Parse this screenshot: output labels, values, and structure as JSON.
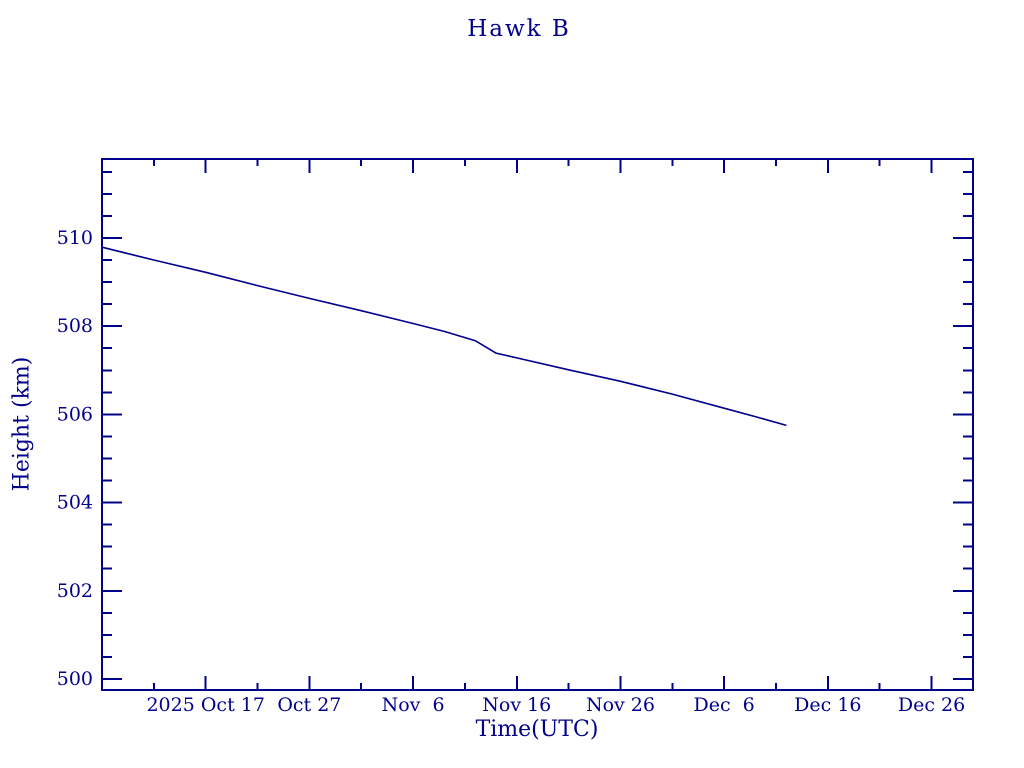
{
  "page": {
    "background": "#FFFFFF"
  },
  "chart_data": {
    "type": "line",
    "title": "Hawk B",
    "xlabel": "Time(UTC)",
    "ylabel": "Height (km)",
    "ink_color": "#00008B",
    "line_color": "#00008B",
    "background": "#FFFFFF",
    "grid": false,
    "legend": false,
    "x_axis": {
      "start_date": "2025 Oct 7",
      "range_days": [
        0,
        84
      ],
      "major_ticks": [
        {
          "day": 10,
          "label": "2025 Oct 17"
        },
        {
          "day": 20,
          "label": "Oct 27"
        },
        {
          "day": 30,
          "label": "Nov  6"
        },
        {
          "day": 40,
          "label": "Nov 16"
        },
        {
          "day": 50,
          "label": "Nov 26"
        },
        {
          "day": 60,
          "label": "Dec  6"
        },
        {
          "day": 70,
          "label": "Dec 16"
        },
        {
          "day": 80,
          "label": "Dec 26"
        }
      ],
      "minor_tick_days": [
        5,
        15,
        25,
        35,
        45,
        55,
        65,
        75
      ]
    },
    "y_axis": {
      "range": [
        499.75,
        511.79
      ],
      "major_ticks": [
        500,
        502,
        504,
        506,
        508,
        510
      ],
      "minor_step": 0.5
    },
    "series": [
      {
        "name": "Hawk B height",
        "points": [
          {
            "date": "Oct 7",
            "day": 0,
            "height_km": 509.79
          },
          {
            "date": "Oct 12",
            "day": 5,
            "height_km": 509.5
          },
          {
            "date": "Oct 17",
            "day": 10,
            "height_km": 509.22
          },
          {
            "date": "Oct 22",
            "day": 15,
            "height_km": 508.92
          },
          {
            "date": "Oct 27",
            "day": 20,
            "height_km": 508.63
          },
          {
            "date": "Nov 1",
            "day": 25,
            "height_km": 508.35
          },
          {
            "date": "Nov 6",
            "day": 30,
            "height_km": 508.06
          },
          {
            "date": "Nov 9",
            "day": 33,
            "height_km": 507.88
          },
          {
            "date": "Nov 12",
            "day": 36,
            "height_km": 507.67
          },
          {
            "date": "Nov 14",
            "day": 38,
            "height_km": 507.39
          },
          {
            "date": "Nov 16",
            "day": 40,
            "height_km": 507.28
          },
          {
            "date": "Nov 21",
            "day": 45,
            "height_km": 507.01
          },
          {
            "date": "Nov 26",
            "day": 50,
            "height_km": 506.75
          },
          {
            "date": "Dec 1",
            "day": 55,
            "height_km": 506.46
          },
          {
            "date": "Dec 6",
            "day": 60,
            "height_km": 506.14
          },
          {
            "date": "Dec 9",
            "day": 63,
            "height_km": 505.95
          },
          {
            "date": "Dec 12",
            "day": 66,
            "height_km": 505.75
          }
        ]
      }
    ]
  }
}
